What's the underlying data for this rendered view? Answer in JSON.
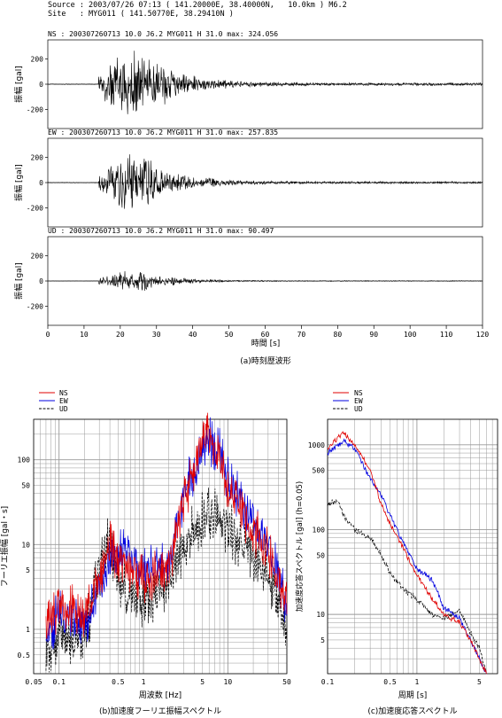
{
  "header": {
    "source_line": "Source : 2003/07/26 07:13 ( 141.20000E, 38.40000N,   10.0km ) M6.2",
    "site_line": "Site   : MYG011 ( 141.50770E, 38.29410N )"
  },
  "waveforms": {
    "ylabel": "振幅 [gal]",
    "xlabel": "時間 [s]",
    "caption": "(a)時刻歴波形",
    "x_ticks": [
      "0",
      "10",
      "20",
      "30",
      "40",
      "50",
      "60",
      "70",
      "80",
      "90",
      "100",
      "110",
      "120"
    ],
    "y_ticks": [
      "200",
      "0",
      "-200"
    ],
    "panels": [
      {
        "label": "NS : 200307260713  10.0 J6.2 MYG011 H  31.0 max: 324.056",
        "max": 324.056
      },
      {
        "label": "EW : 200307260713  10.0 J6.2 MYG011 H  31.0 max: 257.835",
        "max": 257.835
      },
      {
        "label": "UD : 200307260713  10.0 J6.2 MYG011 H  31.0 max:  90.497",
        "max": 90.497
      }
    ]
  },
  "fourier": {
    "legend": [
      "NS",
      "EW",
      "UD"
    ],
    "ylabel": "フーリエ振幅 [gal・s]",
    "xlabel": "周波数 [Hz]",
    "caption": "(b)加速度フーリエ振幅スペクトル",
    "x_ticks": [
      "0.05",
      "0.1",
      "0.5",
      "1",
      "5",
      "10",
      "50"
    ],
    "y_ticks": [
      "100",
      "50",
      "10",
      "5",
      "1",
      "0.5"
    ]
  },
  "response": {
    "legend": [
      "NS",
      "EW",
      "UD"
    ],
    "ylabel": "加速度応答スペクトル [gal] (h=0.05)",
    "xlabel": "周期 [s]",
    "caption": "(c)加速度応答スペクトル",
    "x_ticks": [
      "0.1",
      "0.5",
      "1",
      "5"
    ],
    "y_ticks": [
      "1000",
      "500",
      "100",
      "50",
      "10",
      "5"
    ]
  },
  "colors": {
    "NS": "#e00000",
    "EW": "#0000e0",
    "UD": "#000000"
  },
  "chart_data": [
    {
      "type": "line",
      "title": "(a)時刻歴波形",
      "xlabel": "時間 [s]",
      "ylabel": "振幅 [gal]",
      "xlim": [
        0,
        120
      ],
      "ylim": [
        -350,
        350
      ],
      "series": [
        {
          "name": "NS",
          "max": 324.056,
          "onset_s": 14,
          "peak_s": 24
        },
        {
          "name": "EW",
          "max": 257.835,
          "onset_s": 14,
          "peak_s": 24
        },
        {
          "name": "UD",
          "max": 90.497,
          "onset_s": 14,
          "peak_s": 24
        }
      ]
    },
    {
      "type": "line",
      "title": "(b)加速度フーリエ振幅スペクトル",
      "xlabel": "周波数 [Hz]",
      "ylabel": "フーリエ振幅 [gal・s]",
      "x_scale": "log",
      "y_scale": "log",
      "xlim": [
        0.05,
        50
      ],
      "ylim": [
        0.3,
        300
      ],
      "series": [
        {
          "name": "NS",
          "x": [
            0.07,
            0.1,
            0.2,
            0.3,
            0.4,
            0.5,
            1,
            2,
            3,
            5,
            6,
            8,
            10,
            20,
            30,
            50
          ],
          "y": [
            1,
            2,
            1.5,
            4,
            10,
            7,
            4,
            5,
            30,
            150,
            200,
            100,
            40,
            15,
            8,
            2
          ]
        },
        {
          "name": "EW",
          "x": [
            0.07,
            0.1,
            0.2,
            0.3,
            0.4,
            0.5,
            1,
            2,
            3,
            5,
            6,
            8,
            10,
            20,
            30,
            50
          ],
          "y": [
            0.8,
            1.5,
            1.2,
            3,
            6,
            9,
            5,
            6,
            40,
            120,
            170,
            120,
            60,
            20,
            10,
            2
          ]
        },
        {
          "name": "UD",
          "x": [
            0.07,
            0.1,
            0.2,
            0.3,
            0.4,
            0.5,
            1,
            2,
            3,
            5,
            6,
            8,
            10,
            20,
            30,
            50
          ],
          "y": [
            0.5,
            0.9,
            0.8,
            5,
            11,
            4,
            2,
            4,
            10,
            20,
            25,
            20,
            15,
            8,
            5,
            1
          ]
        }
      ]
    },
    {
      "type": "line",
      "title": "(c)加速度応答スペクトル",
      "xlabel": "周期 [s]",
      "ylabel": "加速度応答スペクトル [gal] (h=0.05)",
      "x_scale": "log",
      "y_scale": "log",
      "xlim": [
        0.1,
        8
      ],
      "ylim": [
        2,
        2000
      ],
      "series": [
        {
          "name": "NS",
          "x": [
            0.1,
            0.13,
            0.15,
            0.2,
            0.3,
            0.4,
            0.5,
            0.7,
            1,
            1.5,
            2,
            3,
            4,
            5,
            6
          ],
          "y": [
            900,
            1200,
            1400,
            1000,
            500,
            200,
            120,
            60,
            30,
            15,
            10,
            8,
            5,
            3,
            2
          ]
        },
        {
          "name": "EW",
          "x": [
            0.1,
            0.13,
            0.15,
            0.2,
            0.3,
            0.4,
            0.5,
            0.7,
            1,
            1.5,
            2,
            3,
            4,
            5,
            6
          ],
          "y": [
            800,
            1000,
            1100,
            900,
            400,
            250,
            150,
            70,
            35,
            25,
            12,
            9,
            5,
            3,
            2
          ]
        },
        {
          "name": "UD",
          "x": [
            0.1,
            0.13,
            0.15,
            0.2,
            0.3,
            0.4,
            0.5,
            0.7,
            1,
            1.5,
            2,
            3,
            4,
            5,
            6
          ],
          "y": [
            200,
            220,
            150,
            100,
            80,
            50,
            30,
            20,
            15,
            10,
            9,
            11,
            6,
            4,
            2
          ]
        }
      ]
    }
  ]
}
